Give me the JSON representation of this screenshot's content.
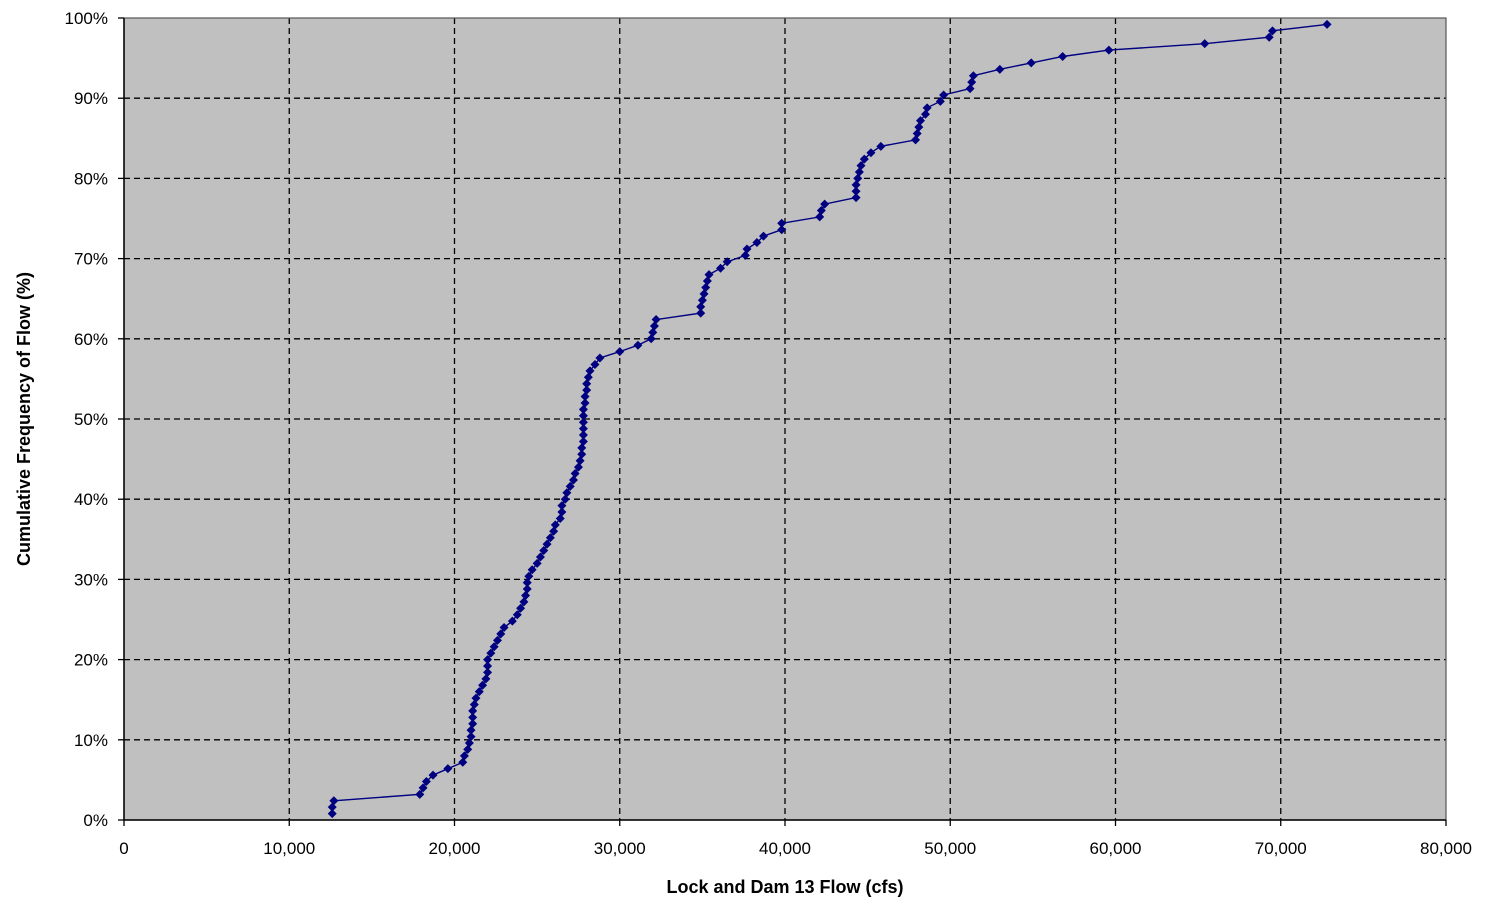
{
  "chart_data": {
    "type": "line",
    "title": "",
    "xlabel": "Lock and Dam 13 Flow (cfs)",
    "ylabel": "Cumulative Frequency of Flow (%)",
    "xlim": [
      0,
      80000
    ],
    "ylim": [
      0,
      100
    ],
    "x_ticks": [
      0,
      10000,
      20000,
      30000,
      40000,
      50000,
      60000,
      70000,
      80000
    ],
    "x_tick_labels": [
      "0",
      "10,000",
      "20,000",
      "30,000",
      "40,000",
      "50,000",
      "60,000",
      "70,000",
      "80,000"
    ],
    "y_ticks": [
      0,
      10,
      20,
      30,
      40,
      50,
      60,
      70,
      80,
      90,
      100
    ],
    "y_tick_labels": [
      "0%",
      "10%",
      "20%",
      "30%",
      "40%",
      "50%",
      "60%",
      "70%",
      "80%",
      "90%",
      "100%"
    ],
    "grid": true,
    "legend": "none",
    "series": [
      {
        "marker": "diamond",
        "points": [
          [
            12600,
            0.8
          ],
          [
            12600,
            1.6
          ],
          [
            12700,
            2.4
          ],
          [
            17900,
            3.2
          ],
          [
            18100,
            4.0
          ],
          [
            18300,
            4.8
          ],
          [
            18700,
            5.6
          ],
          [
            19600,
            6.4
          ],
          [
            20500,
            7.2
          ],
          [
            20600,
            8.0
          ],
          [
            20800,
            8.8
          ],
          [
            20900,
            9.6
          ],
          [
            21000,
            10.4
          ],
          [
            21000,
            11.2
          ],
          [
            21100,
            12.0
          ],
          [
            21100,
            12.8
          ],
          [
            21100,
            13.6
          ],
          [
            21200,
            14.4
          ],
          [
            21300,
            15.2
          ],
          [
            21500,
            16.0
          ],
          [
            21700,
            16.8
          ],
          [
            21900,
            17.6
          ],
          [
            22000,
            18.4
          ],
          [
            22000,
            19.2
          ],
          [
            22000,
            20.0
          ],
          [
            22200,
            20.8
          ],
          [
            22400,
            21.6
          ],
          [
            22600,
            22.4
          ],
          [
            22800,
            23.2
          ],
          [
            23000,
            24.0
          ],
          [
            23500,
            24.8
          ],
          [
            23800,
            25.6
          ],
          [
            24000,
            26.4
          ],
          [
            24200,
            27.2
          ],
          [
            24300,
            28.0
          ],
          [
            24400,
            28.8
          ],
          [
            24400,
            29.6
          ],
          [
            24500,
            30.4
          ],
          [
            24700,
            31.2
          ],
          [
            25000,
            32.0
          ],
          [
            25200,
            32.8
          ],
          [
            25400,
            33.6
          ],
          [
            25600,
            34.4
          ],
          [
            25800,
            35.2
          ],
          [
            26000,
            36.0
          ],
          [
            26100,
            36.8
          ],
          [
            26400,
            37.6
          ],
          [
            26500,
            38.4
          ],
          [
            26500,
            39.2
          ],
          [
            26700,
            40.0
          ],
          [
            26800,
            40.8
          ],
          [
            27000,
            41.6
          ],
          [
            27200,
            42.4
          ],
          [
            27300,
            43.2
          ],
          [
            27500,
            44.0
          ],
          [
            27600,
            44.8
          ],
          [
            27700,
            45.6
          ],
          [
            27700,
            46.4
          ],
          [
            27800,
            47.2
          ],
          [
            27800,
            48.0
          ],
          [
            27800,
            48.8
          ],
          [
            27800,
            49.6
          ],
          [
            27800,
            50.4
          ],
          [
            27800,
            51.2
          ],
          [
            27900,
            52.0
          ],
          [
            27900,
            52.8
          ],
          [
            28000,
            53.6
          ],
          [
            28000,
            54.4
          ],
          [
            28100,
            55.2
          ],
          [
            28200,
            56.0
          ],
          [
            28500,
            56.8
          ],
          [
            28800,
            57.6
          ],
          [
            30000,
            58.4
          ],
          [
            31100,
            59.2
          ],
          [
            31900,
            60.0
          ],
          [
            32000,
            60.8
          ],
          [
            32100,
            61.6
          ],
          [
            32200,
            62.4
          ],
          [
            34900,
            63.2
          ],
          [
            34900,
            64.0
          ],
          [
            35000,
            64.8
          ],
          [
            35100,
            65.6
          ],
          [
            35200,
            66.4
          ],
          [
            35300,
            67.2
          ],
          [
            35400,
            68.0
          ],
          [
            36100,
            68.8
          ],
          [
            36500,
            69.6
          ],
          [
            37600,
            70.4
          ],
          [
            37700,
            71.2
          ],
          [
            38300,
            72.0
          ],
          [
            38700,
            72.8
          ],
          [
            39800,
            73.6
          ],
          [
            39800,
            74.4
          ],
          [
            42100,
            75.2
          ],
          [
            42200,
            76.0
          ],
          [
            42400,
            76.8
          ],
          [
            44300,
            77.6
          ],
          [
            44300,
            78.4
          ],
          [
            44300,
            79.2
          ],
          [
            44400,
            80.0
          ],
          [
            44500,
            80.8
          ],
          [
            44600,
            81.6
          ],
          [
            44800,
            82.4
          ],
          [
            45200,
            83.2
          ],
          [
            45800,
            84.0
          ],
          [
            47900,
            84.8
          ],
          [
            48000,
            85.6
          ],
          [
            48100,
            86.4
          ],
          [
            48200,
            87.2
          ],
          [
            48500,
            88.0
          ],
          [
            48600,
            88.8
          ],
          [
            49400,
            89.6
          ],
          [
            49600,
            90.4
          ],
          [
            51200,
            91.2
          ],
          [
            51300,
            92.0
          ],
          [
            51400,
            92.8
          ],
          [
            53000,
            93.6
          ],
          [
            54900,
            94.4
          ],
          [
            56800,
            95.2
          ],
          [
            59600,
            96.0
          ],
          [
            65400,
            96.8
          ],
          [
            69300,
            97.6
          ],
          [
            69500,
            98.4
          ],
          [
            72800,
            99.2
          ]
        ]
      }
    ]
  },
  "colors": {
    "plot_background": "#c0c0c0",
    "series_line": "#000080",
    "grid": "#000000",
    "page_background": "#ffffff"
  }
}
